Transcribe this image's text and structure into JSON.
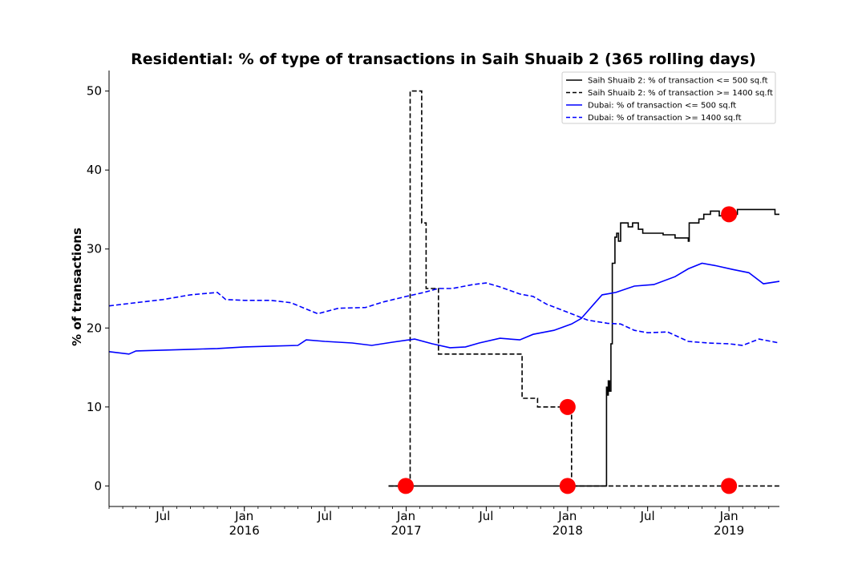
{
  "chart_data": {
    "type": "line",
    "title": "Residential: % of type of transactions in Saih Shuaib 2 (365 rolling days)",
    "xlabel": "",
    "ylabel": "% of transactions",
    "ylim": [
      -2.6,
      52.6
    ],
    "xlim": [
      "2015-03-01",
      "2019-04-25"
    ],
    "yticks": [
      0,
      10,
      20,
      30,
      40,
      50
    ],
    "xticks": [
      {
        "date": "2015-07-01",
        "label": "Jul",
        "sub": ""
      },
      {
        "date": "2016-01-01",
        "label": "Jan",
        "sub": "2016"
      },
      {
        "date": "2016-07-01",
        "label": "Jul",
        "sub": ""
      },
      {
        "date": "2017-01-01",
        "label": "Jan",
        "sub": "2017"
      },
      {
        "date": "2017-07-01",
        "label": "Jul",
        "sub": ""
      },
      {
        "date": "2018-01-01",
        "label": "Jan",
        "sub": "2018"
      },
      {
        "date": "2018-07-01",
        "label": "Jul",
        "sub": ""
      },
      {
        "date": "2019-01-01",
        "label": "Jan",
        "sub": "2019"
      }
    ],
    "grid": false,
    "legend_position": "top-right",
    "series": [
      {
        "name": "Saih Shuaib 2: % of transaction <= 500 sq.ft",
        "color": "#000000",
        "style": "solid",
        "step": true,
        "points": [
          [
            "2016-11-22",
            0
          ],
          [
            "2018-03-26",
            0
          ],
          [
            "2018-03-30",
            12.5
          ],
          [
            "2018-04-01",
            11.5
          ],
          [
            "2018-04-03",
            13.3
          ],
          [
            "2018-04-06",
            12
          ],
          [
            "2018-04-09",
            18
          ],
          [
            "2018-04-12",
            28.2
          ],
          [
            "2018-04-18",
            31.5
          ],
          [
            "2018-04-22",
            32
          ],
          [
            "2018-04-26",
            31
          ],
          [
            "2018-05-01",
            33.3
          ],
          [
            "2018-05-18",
            32.8
          ],
          [
            "2018-05-28",
            33.3
          ],
          [
            "2018-06-10",
            32.5
          ],
          [
            "2018-06-20",
            32
          ],
          [
            "2018-08-05",
            31.8
          ],
          [
            "2018-09-01",
            31.4
          ],
          [
            "2018-10-01",
            31
          ],
          [
            "2018-10-03",
            33.3
          ],
          [
            "2018-10-25",
            33.8
          ],
          [
            "2018-11-05",
            34.4
          ],
          [
            "2018-11-20",
            34.8
          ],
          [
            "2018-12-10",
            34.2
          ],
          [
            "2018-12-20",
            35
          ],
          [
            "2019-01-08",
            34.4
          ],
          [
            "2019-01-20",
            35
          ],
          [
            "2019-04-15",
            34.4
          ],
          [
            "2019-04-25",
            34.4
          ]
        ]
      },
      {
        "name": "Saih Shuaib 2: % of transaction >= 1400 sq.ft",
        "color": "#000000",
        "style": "dashed",
        "step": true,
        "points": [
          [
            "2016-11-22",
            0
          ],
          [
            "2017-01-10",
            50
          ],
          [
            "2017-02-05",
            33.3
          ],
          [
            "2017-02-15",
            25
          ],
          [
            "2017-03-15",
            16.7
          ],
          [
            "2017-09-20",
            11.1
          ],
          [
            "2017-10-25",
            10
          ],
          [
            "2018-01-10",
            0
          ],
          [
            "2019-04-25",
            0
          ]
        ]
      },
      {
        "name": "Dubai: % of transaction <= 500 sq.ft",
        "color": "#0000ff",
        "style": "solid",
        "step": false,
        "points": [
          [
            "2015-03-01",
            17
          ],
          [
            "2015-04-15",
            16.7
          ],
          [
            "2015-05-01",
            17.1
          ],
          [
            "2015-07-01",
            17.2
          ],
          [
            "2015-09-01",
            17.3
          ],
          [
            "2015-11-01",
            17.4
          ],
          [
            "2016-01-01",
            17.6
          ],
          [
            "2016-03-01",
            17.7
          ],
          [
            "2016-05-01",
            17.8
          ],
          [
            "2016-05-20",
            18.5
          ],
          [
            "2016-07-01",
            18.3
          ],
          [
            "2016-09-01",
            18.1
          ],
          [
            "2016-10-15",
            17.8
          ],
          [
            "2016-12-01",
            18.2
          ],
          [
            "2017-01-20",
            18.6
          ],
          [
            "2017-03-01",
            18
          ],
          [
            "2017-04-10",
            17.5
          ],
          [
            "2017-05-15",
            17.6
          ],
          [
            "2017-06-15",
            18.1
          ],
          [
            "2017-08-01",
            18.7
          ],
          [
            "2017-09-15",
            18.5
          ],
          [
            "2017-10-15",
            19.2
          ],
          [
            "2017-12-01",
            19.7
          ],
          [
            "2018-01-10",
            20.5
          ],
          [
            "2018-02-01",
            21.2
          ],
          [
            "2018-03-01",
            23
          ],
          [
            "2018-03-20",
            24.2
          ],
          [
            "2018-04-20",
            24.5
          ],
          [
            "2018-06-01",
            25.3
          ],
          [
            "2018-07-15",
            25.5
          ],
          [
            "2018-09-01",
            26.5
          ],
          [
            "2018-10-01",
            27.5
          ],
          [
            "2018-11-01",
            28.2
          ],
          [
            "2018-12-01",
            27.9
          ],
          [
            "2019-01-10",
            27.4
          ],
          [
            "2019-02-15",
            27
          ],
          [
            "2019-03-20",
            25.6
          ],
          [
            "2019-04-25",
            25.9
          ]
        ]
      },
      {
        "name": "Dubai: % of transaction >= 1400 sq.ft",
        "color": "#0000ff",
        "style": "dashed",
        "step": false,
        "points": [
          [
            "2015-03-01",
            22.8
          ],
          [
            "2015-05-01",
            23.2
          ],
          [
            "2015-07-01",
            23.6
          ],
          [
            "2015-09-01",
            24.2
          ],
          [
            "2015-11-01",
            24.5
          ],
          [
            "2015-11-20",
            23.6
          ],
          [
            "2016-01-01",
            23.5
          ],
          [
            "2016-03-01",
            23.5
          ],
          [
            "2016-04-15",
            23.2
          ],
          [
            "2016-06-15",
            21.8
          ],
          [
            "2016-08-01",
            22.5
          ],
          [
            "2016-10-01",
            22.6
          ],
          [
            "2016-11-10",
            23.3
          ],
          [
            "2017-01-01",
            24
          ],
          [
            "2017-02-10",
            24.5
          ],
          [
            "2017-03-15",
            25
          ],
          [
            "2017-04-15",
            25
          ],
          [
            "2017-06-01",
            25.5
          ],
          [
            "2017-07-01",
            25.7
          ],
          [
            "2017-08-01",
            25.2
          ],
          [
            "2017-09-15",
            24.3
          ],
          [
            "2017-10-15",
            24
          ],
          [
            "2017-11-15",
            23
          ],
          [
            "2018-01-01",
            22
          ],
          [
            "2018-02-15",
            21
          ],
          [
            "2018-04-01",
            20.6
          ],
          [
            "2018-05-01",
            20.5
          ],
          [
            "2018-06-01",
            19.7
          ],
          [
            "2018-07-01",
            19.4
          ],
          [
            "2018-08-15",
            19.5
          ],
          [
            "2018-10-01",
            18.3
          ],
          [
            "2018-11-15",
            18.1
          ],
          [
            "2019-01-01",
            18
          ],
          [
            "2019-02-01",
            17.8
          ],
          [
            "2019-03-10",
            18.6
          ],
          [
            "2019-04-25",
            18.1
          ]
        ]
      }
    ],
    "markers": {
      "color": "#ff0000",
      "points": [
        [
          "2016-12-31",
          0
        ],
        [
          "2018-01-01",
          10
        ],
        [
          "2018-01-01",
          0
        ],
        [
          "2019-01-01",
          34.4
        ],
        [
          "2019-01-01",
          0
        ]
      ]
    }
  }
}
